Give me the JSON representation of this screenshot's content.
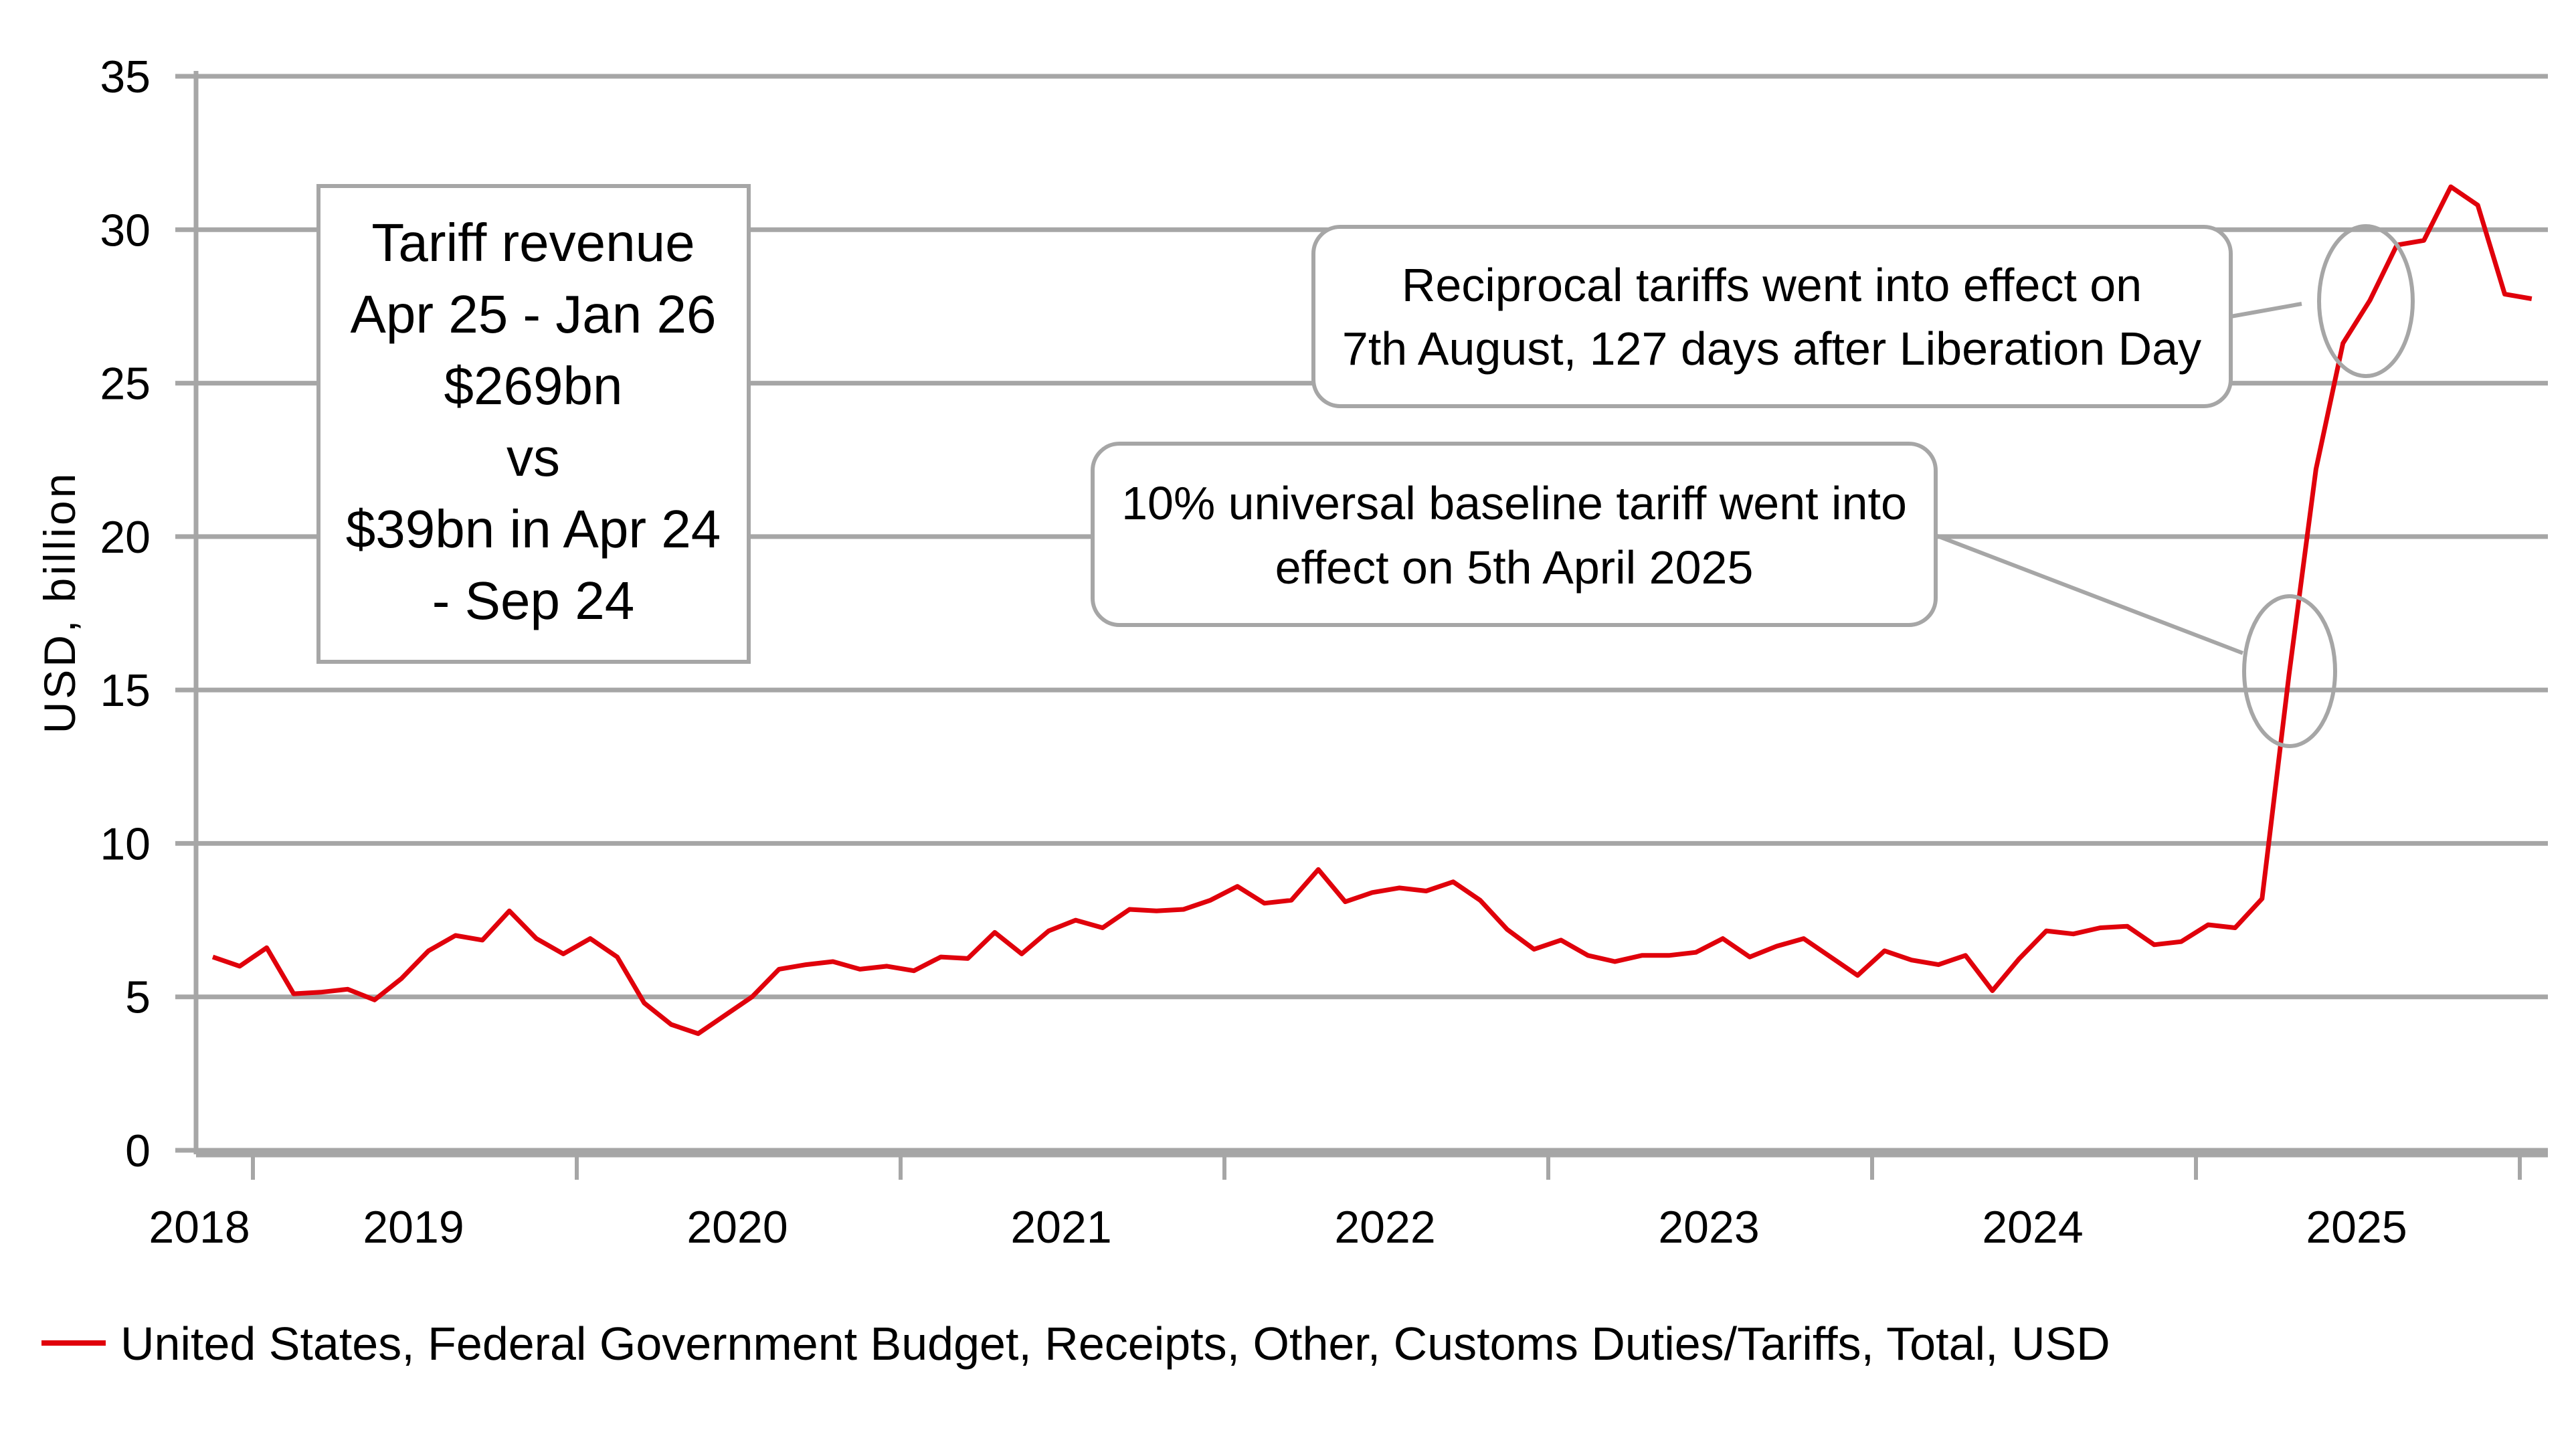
{
  "chart_data": {
    "type": "line",
    "title": "",
    "xlabel": "",
    "ylabel": "USD, billion",
    "ylim": [
      0,
      35
    ],
    "yticks": [
      "0",
      "5",
      "10",
      "15",
      "20",
      "25",
      "30",
      "35"
    ],
    "xtick_labels": [
      "2018",
      "2019",
      "2020",
      "2021",
      "2022",
      "2023",
      "2024",
      "2025"
    ],
    "grid": "horizontal",
    "legend_position": "bottom-left",
    "start_month": "2017-12",
    "series": [
      {
        "name": "United States, Federal Government Budget, Receipts, Other, Customs Duties/Tariffs, Total, USD",
        "color": "#e0000b",
        "values": [
          6.3,
          6.0,
          6.6,
          5.1,
          5.15,
          5.25,
          4.9,
          5.6,
          6.5,
          7.0,
          6.85,
          7.8,
          6.9,
          6.4,
          6.9,
          6.3,
          4.8,
          4.1,
          3.8,
          4.4,
          5.0,
          5.9,
          6.05,
          6.15,
          5.9,
          6.0,
          5.85,
          6.3,
          6.25,
          7.1,
          6.4,
          7.15,
          7.5,
          7.25,
          7.85,
          7.8,
          7.85,
          8.15,
          8.6,
          8.05,
          8.15,
          9.15,
          8.1,
          8.4,
          8.55,
          8.45,
          8.75,
          8.15,
          7.2,
          6.55,
          6.85,
          6.35,
          6.15,
          6.35,
          6.35,
          6.45,
          6.9,
          6.3,
          6.65,
          6.9,
          6.3,
          5.7,
          6.5,
          6.2,
          6.05,
          6.35,
          5.2,
          6.25,
          7.15,
          7.05,
          7.25,
          7.3,
          6.7,
          6.8,
          7.35,
          7.25,
          8.2,
          15.5,
          22.2,
          26.3,
          27.7,
          29.5,
          29.65,
          31.4,
          30.8,
          27.9,
          27.75
        ]
      }
    ],
    "annotations": {
      "summary_box": [
        "Tariff revenue",
        "Apr 25 - Jan 26",
        "$269bn",
        "vs",
        "$39bn in Apr 24",
        "- Sep 24"
      ],
      "callout_reciprocal": [
        "Reciprocal tariffs went into effect on",
        "7th August, 127 days after Liberation Day"
      ],
      "callout_baseline": [
        "10% universal baseline tariff went into",
        "effect on 5th April 2025"
      ]
    }
  },
  "colors": {
    "series": "#e0000b",
    "grid": "#a6a6a6",
    "axis": "#a6a6a6",
    "text": "#000000"
  }
}
